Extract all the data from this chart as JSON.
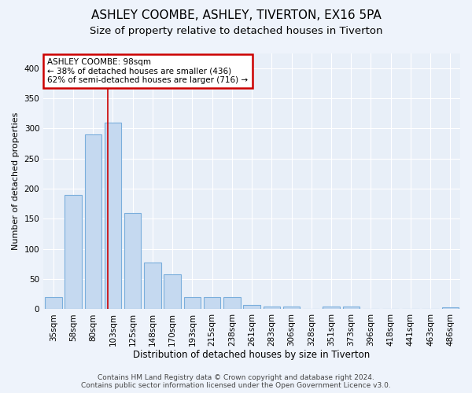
{
  "title1": "ASHLEY COOMBE, ASHLEY, TIVERTON, EX16 5PA",
  "title2": "Size of property relative to detached houses in Tiverton",
  "xlabel": "Distribution of detached houses by size in Tiverton",
  "ylabel": "Number of detached properties",
  "categories": [
    "35sqm",
    "58sqm",
    "80sqm",
    "103sqm",
    "125sqm",
    "148sqm",
    "170sqm",
    "193sqm",
    "215sqm",
    "238sqm",
    "261sqm",
    "283sqm",
    "306sqm",
    "328sqm",
    "351sqm",
    "373sqm",
    "396sqm",
    "418sqm",
    "441sqm",
    "463sqm",
    "486sqm"
  ],
  "values": [
    20,
    190,
    290,
    310,
    160,
    78,
    58,
    20,
    20,
    20,
    7,
    5,
    5,
    0,
    4,
    4,
    0,
    0,
    0,
    0,
    3
  ],
  "bar_color": "#c5d9f0",
  "bar_edge_color": "#7aaedc",
  "bar_width": 0.85,
  "ylim": [
    0,
    425
  ],
  "yticks": [
    0,
    50,
    100,
    150,
    200,
    250,
    300,
    350,
    400
  ],
  "red_line_x": 2.73,
  "annotation_line1": "ASHLEY COOMBE: 98sqm",
  "annotation_line2": "← 38% of detached houses are smaller (436)",
  "annotation_line3": "62% of semi-detached houses are larger (716) →",
  "annotation_box_color": "#ffffff",
  "annotation_border_color": "#cc0000",
  "footer_text": "Contains HM Land Registry data © Crown copyright and database right 2024.\nContains public sector information licensed under the Open Government Licence v3.0.",
  "bg_color": "#eef3fb",
  "plot_bg_color": "#e8eff8",
  "grid_color": "#ffffff",
  "title1_fontsize": 11,
  "title2_fontsize": 9.5,
  "xlabel_fontsize": 8.5,
  "ylabel_fontsize": 8,
  "tick_fontsize": 7.5,
  "footer_fontsize": 6.5
}
